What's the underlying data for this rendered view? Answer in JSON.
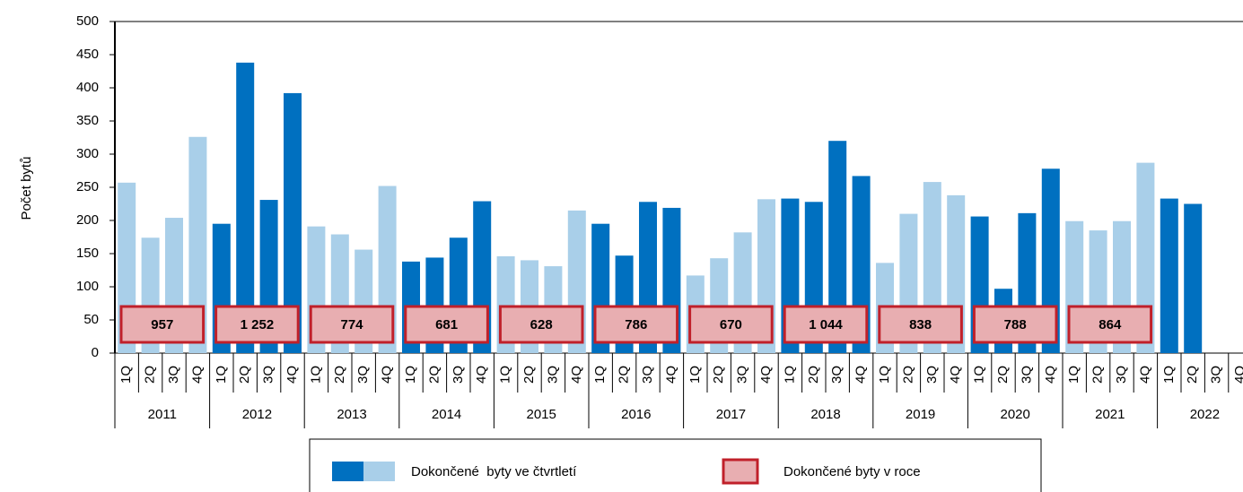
{
  "chart_data": {
    "type": "bar",
    "y_label": "Počet bytů",
    "quarters": [
      "1Q",
      "2Q",
      "3Q",
      "4Q"
    ],
    "years": [
      "2011",
      "2012",
      "2013",
      "2014",
      "2015",
      "2016",
      "2017",
      "2018",
      "2019",
      "2020",
      "2021",
      "2022"
    ],
    "series": [
      {
        "name": "Dokončené  byty ve čtvrtletí",
        "colors": [
          "#a9cfe9",
          "#0070c0"
        ],
        "values": [
          257,
          174,
          204,
          326,
          195,
          438,
          231,
          392,
          191,
          179,
          156,
          252,
          138,
          144,
          174,
          229,
          146,
          140,
          131,
          215,
          195,
          147,
          228,
          219,
          117,
          143,
          182,
          232,
          233,
          228,
          320,
          267,
          136,
          210,
          258,
          238,
          206,
          97,
          211,
          278,
          199,
          185,
          199,
          287,
          233,
          225,
          null,
          null
        ]
      }
    ],
    "annual": {
      "name": "Dokončené byty v roce",
      "color": "#e8aeb1",
      "edge": "#c0202a",
      "values": [
        957,
        1252,
        774,
        681,
        628,
        786,
        670,
        1044,
        838,
        788,
        864
      ],
      "value_labels": [
        "957",
        "1 252",
        "774",
        "681",
        "628",
        "786",
        "670",
        "1 044",
        "838",
        "788",
        "864"
      ]
    },
    "ylim": [
      0,
      500
    ],
    "yticks": [
      0,
      50,
      100,
      150,
      200,
      250,
      300,
      350,
      400,
      450,
      500
    ]
  }
}
